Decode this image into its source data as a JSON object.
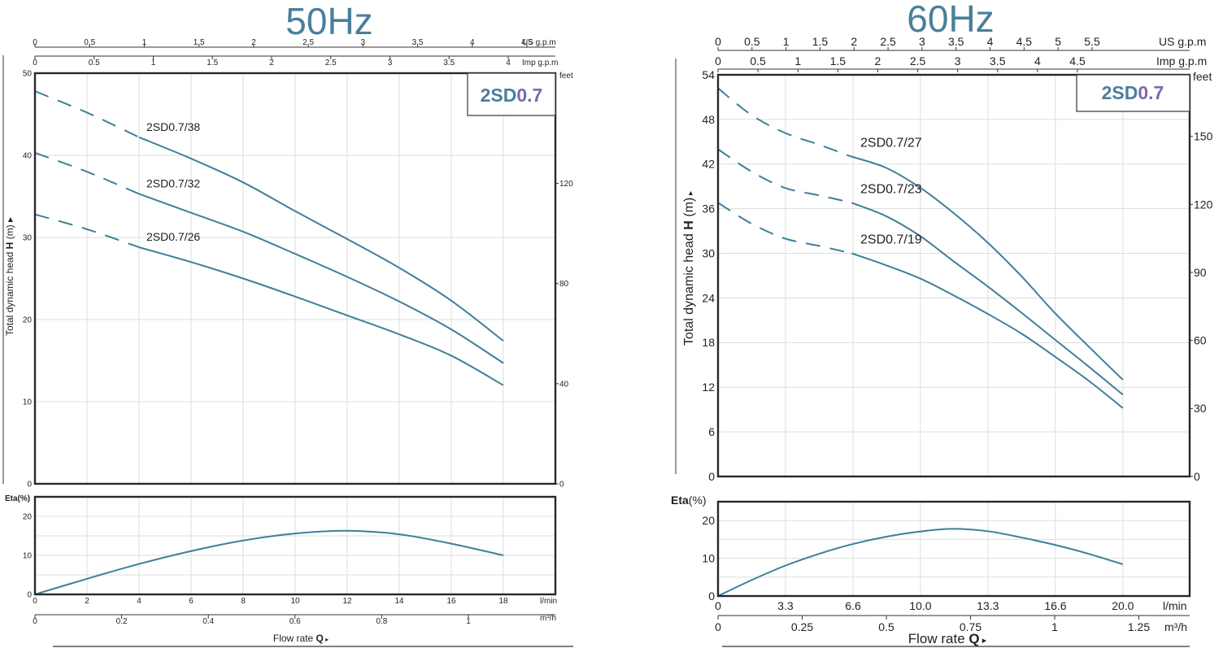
{
  "charts": {
    "hz50": {
      "title": "50Hz",
      "model_badge": {
        "prefix": "2SD",
        "suffix": "0.7"
      },
      "top_axis_us": {
        "unit": "US g.p.m",
        "ticks": [
          "0",
          "0.5",
          "1",
          "1.5",
          "2",
          "2.5",
          "3",
          "3.5",
          "4",
          "4.5"
        ]
      },
      "top_axis_imp": {
        "unit": "Imp g.p.m",
        "ticks": [
          "0",
          "0.5",
          "1",
          "1.5",
          "2",
          "2.5",
          "3",
          "3.5",
          "4"
        ]
      },
      "ylabel": {
        "pre": "Total dynamic head ",
        "bold": "H",
        "post": " (m)"
      },
      "yticks": [
        "0",
        "10",
        "20",
        "30",
        "40",
        "50"
      ],
      "feet_unit": "feet",
      "feet_ticks": [
        "0",
        "40",
        "80",
        "120"
      ],
      "eta_label": "Eta(%)",
      "eta_ticks": [
        "0",
        "10",
        "20"
      ],
      "lmin_unit": "l/min",
      "lmin_ticks": [
        "0",
        "2",
        "4",
        "6",
        "8",
        "10",
        "12",
        "14",
        "16",
        "18"
      ],
      "m3h_unit": "m³/h",
      "m3h_ticks": [
        "0",
        "0.2",
        "0.4",
        "0.6",
        "0.8",
        "1"
      ],
      "flow_label": {
        "pre": "Flow rate ",
        "bold": "Q"
      }
    },
    "hz60": {
      "title": "60Hz",
      "model_badge": {
        "prefix": "2SD",
        "suffix": "0.7"
      },
      "top_axis_us": {
        "unit": "US g.p.m",
        "ticks": [
          "0",
          "0.5",
          "1",
          "1.5",
          "2",
          "2.5",
          "3",
          "3.5",
          "4",
          "4.5",
          "5",
          "5.5"
        ]
      },
      "top_axis_imp": {
        "unit": "Imp g.p.m",
        "ticks": [
          "0",
          "0.5",
          "1",
          "1.5",
          "2",
          "2.5",
          "3",
          "3.5",
          "4",
          "4.5"
        ]
      },
      "ylabel": {
        "pre": "Total dynamic head ",
        "bold": "H",
        "post": " (m)"
      },
      "yticks": [
        "0",
        "6",
        "12",
        "18",
        "24",
        "30",
        "36",
        "42",
        "48",
        "54"
      ],
      "feet_unit": "feet",
      "feet_ticks": [
        "0",
        "30",
        "60",
        "90",
        "120",
        "150"
      ],
      "eta_label": "Eta",
      "eta_label_suffix": "(%)",
      "eta_ticks": [
        "0",
        "10",
        "20"
      ],
      "lmin_unit": "l/min",
      "lmin_ticks": [
        "0",
        "3.3",
        "6.6",
        "10.0",
        "13.3",
        "16.6",
        "20.0"
      ],
      "m3h_unit": "m³/h",
      "m3h_ticks": [
        "0",
        "0.25",
        "0.5",
        "0.75",
        "1",
        "1.25"
      ],
      "flow_label": {
        "pre": "Flow  rate  ",
        "bold": "Q"
      }
    }
  },
  "chart_data": [
    {
      "type": "line",
      "title": "50Hz",
      "subtitle": "2SD0.7",
      "xlabel": "Flow rate Q (l/min)",
      "ylabel": "Total dynamic head H (m)",
      "xlim": [
        0,
        20
      ],
      "ylim": [
        0,
        50
      ],
      "grid": true,
      "series": [
        {
          "name": "2SD0.7/38",
          "dashed_until": 4,
          "x": [
            0,
            2,
            4,
            6,
            8,
            10,
            12,
            14,
            16,
            18
          ],
          "y": [
            47.8,
            45.2,
            42.2,
            39.6,
            36.7,
            33.2,
            29.8,
            26.3,
            22.3,
            17.4
          ]
        },
        {
          "name": "2SD0.7/32",
          "dashed_until": 4,
          "x": [
            0,
            2,
            4,
            6,
            8,
            10,
            12,
            14,
            16,
            18
          ],
          "y": [
            40.3,
            38.0,
            35.3,
            33.0,
            30.7,
            28.0,
            25.2,
            22.2,
            18.8,
            14.7
          ]
        },
        {
          "name": "2SD0.7/26",
          "dashed_until": 4,
          "x": [
            0,
            2,
            4,
            6,
            8,
            10,
            12,
            14,
            16,
            18
          ],
          "y": [
            32.8,
            31.0,
            28.8,
            27.0,
            25.0,
            22.8,
            20.5,
            18.2,
            15.6,
            12.0
          ]
        }
      ],
      "efficiency": {
        "label": "Eta(%)",
        "ylim": [
          0,
          25
        ],
        "x": [
          0,
          2,
          4,
          6,
          8,
          10,
          12,
          14,
          16,
          18
        ],
        "y": [
          0,
          4.0,
          7.8,
          11.1,
          13.8,
          15.6,
          16.3,
          15.4,
          13.0,
          10.0
        ]
      }
    },
    {
      "type": "line",
      "title": "60Hz",
      "subtitle": "2SD0.7",
      "xlabel": "Flow rate Q (l/min)",
      "ylabel": "Total dynamic head H (m)",
      "xlim": [
        0,
        23.3
      ],
      "ylim": [
        0,
        54
      ],
      "grid": true,
      "series": [
        {
          "name": "2SD0.7/27",
          "dashed_until": 6.6,
          "x": [
            0,
            1.65,
            3.3,
            5.0,
            6.6,
            8.3,
            10.0,
            11.6,
            13.3,
            15.0,
            16.6,
            18.3,
            20.0
          ],
          "y": [
            52.2,
            48.6,
            46.2,
            44.6,
            43.0,
            41.5,
            38.8,
            35.5,
            31.5,
            26.9,
            22.1,
            17.5,
            13.0
          ]
        },
        {
          "name": "2SD0.7/23",
          "dashed_until": 6.6,
          "x": [
            0,
            1.65,
            3.3,
            5.0,
            6.6,
            8.3,
            10.0,
            11.6,
            13.3,
            15.0,
            16.6,
            18.3,
            20.0
          ],
          "y": [
            44.0,
            41.0,
            38.8,
            37.8,
            36.8,
            35.0,
            32.3,
            29.0,
            25.6,
            22.0,
            18.5,
            14.8,
            11.0
          ]
        },
        {
          "name": "2SD0.7/19",
          "dashed_until": 6.6,
          "x": [
            0,
            1.65,
            3.3,
            5.0,
            6.6,
            8.3,
            10.0,
            11.6,
            13.3,
            15.0,
            16.6,
            18.3,
            20.0
          ],
          "y": [
            36.8,
            34.0,
            32.0,
            31.0,
            30.0,
            28.4,
            26.6,
            24.4,
            21.9,
            19.2,
            16.2,
            12.9,
            9.2
          ]
        }
      ],
      "efficiency": {
        "label": "Eta(%)",
        "ylim": [
          0,
          25
        ],
        "x": [
          0,
          1.65,
          3.3,
          5.0,
          6.6,
          8.3,
          10.0,
          11.6,
          13.3,
          15.0,
          16.6,
          18.3,
          20.0
        ],
        "y": [
          0,
          4.2,
          8.0,
          11.2,
          13.7,
          15.7,
          17.1,
          17.8,
          17.2,
          15.5,
          13.6,
          11.2,
          8.4
        ]
      }
    }
  ]
}
